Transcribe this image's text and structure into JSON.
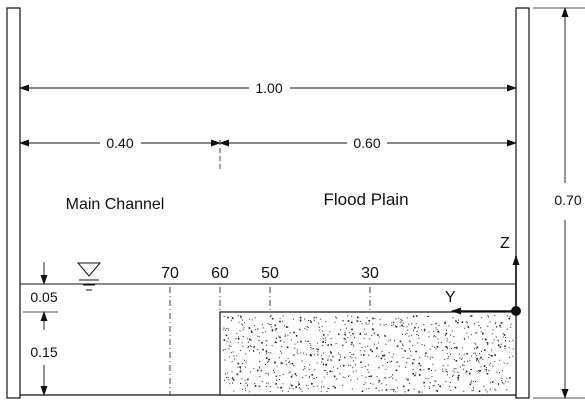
{
  "dimensions": {
    "total_width": "1.00",
    "main_channel_width": "0.40",
    "flood_plain_width": "0.60",
    "total_height": "0.70",
    "depth_above_floodplain": "0.05",
    "floodplain_height": "0.15"
  },
  "regions": {
    "main_channel": "Main Channel",
    "flood_plain": "Flood Plain"
  },
  "stations": [
    "70",
    "60",
    "50",
    "30"
  ],
  "axes": {
    "z": "Z",
    "y": "Y"
  },
  "colors": {
    "line": "#111111",
    "background": "#ffffff"
  },
  "icons": {
    "water_surface": "water-level-triangle-icon"
  }
}
